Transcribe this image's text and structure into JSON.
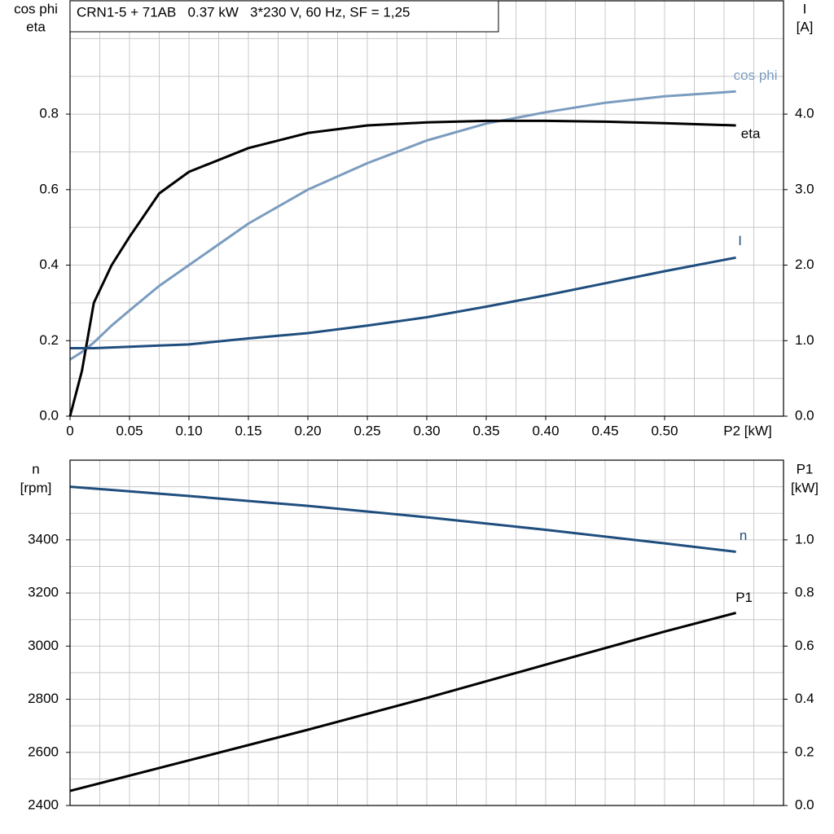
{
  "chart_data": [
    {
      "type": "line",
      "title": "CRN1-5 + 71AB   0.37 kW   3*230 V, 60 Hz, SF = 1,25",
      "ylabel": [
        "cos phi",
        "eta"
      ],
      "y2label": [
        "I",
        "[A]"
      ],
      "xlabel": "P2 [kW]",
      "x": [
        0,
        0.01,
        0.02,
        0.035,
        0.05,
        0.075,
        0.1,
        0.15,
        0.2,
        0.25,
        0.3,
        0.35,
        0.4,
        0.45,
        0.5,
        0.56
      ],
      "xlim": [
        0,
        0.6
      ],
      "xticks": [
        0,
        0.05,
        {
          "value": 0.1,
          "label": "0.10"
        },
        0.15,
        {
          "value": 0.2,
          "label": "0.20"
        },
        0.25,
        {
          "value": 0.3,
          "label": "0.30"
        },
        0.35,
        {
          "value": 0.4,
          "label": "0.40"
        },
        0.45,
        {
          "value": 0.5,
          "label": "0.50"
        }
      ],
      "xgrid": [
        0.025,
        0.05,
        0.075,
        0.1,
        0.125,
        0.15,
        0.175,
        0.2,
        0.225,
        0.25,
        0.275,
        0.3,
        0.325,
        0.35,
        0.375,
        0.4,
        0.425,
        0.45,
        0.475,
        0.5,
        0.525,
        0.55,
        0.575
      ],
      "ylim": [
        0,
        1.1
      ],
      "yticks": [
        {
          "value": 0,
          "label": "0.0"
        },
        0.2,
        0.4,
        0.6,
        0.8
      ],
      "ygrid": [
        0.1,
        0.2,
        0.3,
        0.4,
        0.5,
        0.6,
        0.7,
        0.8,
        0.9,
        1.0
      ],
      "y2lim": [
        0,
        5.5
      ],
      "y2ticks": [
        {
          "value": 0,
          "label": "0.0"
        },
        {
          "value": 1,
          "label": "1.0"
        },
        {
          "value": 2,
          "label": "2.0"
        },
        {
          "value": 3,
          "label": "3.0"
        },
        {
          "value": 4,
          "label": "4.0"
        }
      ],
      "series": [
        {
          "name": "cos phi",
          "color": "#7b9cbf",
          "values": [
            0.15,
            0.17,
            0.195,
            0.24,
            0.28,
            0.345,
            0.4,
            0.51,
            0.6,
            0.67,
            0.73,
            0.775,
            0.805,
            0.83,
            0.847,
            0.86
          ]
        },
        {
          "name": "eta",
          "color": "#000000",
          "values": [
            0,
            0.12,
            0.3,
            0.4,
            0.475,
            0.59,
            0.647,
            0.71,
            0.75,
            0.77,
            0.778,
            0.782,
            0.782,
            0.78,
            0.776,
            0.77
          ]
        },
        {
          "name": "I",
          "color": "#1f4e7e",
          "axis": "y2",
          "values": [
            0.9,
            0.9,
            0.9,
            0.91,
            0.92,
            0.935,
            0.95,
            1.03,
            1.1,
            1.2,
            1.31,
            1.45,
            1.6,
            1.76,
            1.92,
            2.1
          ]
        }
      ]
    },
    {
      "type": "line",
      "ylabel": [
        "n",
        "[rpm]"
      ],
      "y2label": [
        "P1",
        "[kW]"
      ],
      "x": [
        0,
        0.1,
        0.2,
        0.3,
        0.4,
        0.5,
        0.56
      ],
      "xlim": [
        0,
        0.6
      ],
      "xgrid": [
        0.025,
        0.05,
        0.075,
        0.1,
        0.125,
        0.15,
        0.175,
        0.2,
        0.225,
        0.25,
        0.275,
        0.3,
        0.325,
        0.35,
        0.375,
        0.4,
        0.425,
        0.45,
        0.475,
        0.5,
        0.525,
        0.55,
        0.575
      ],
      "ylim": [
        2400,
        3700
      ],
      "yticks": [
        2400,
        2600,
        2800,
        3000,
        3200,
        3400
      ],
      "ygrid": [
        2500,
        2600,
        2700,
        2800,
        2900,
        3000,
        3100,
        3200,
        3300,
        3400,
        3500,
        3600
      ],
      "y2lim": [
        0,
        1.3
      ],
      "y2ticks": [
        {
          "value": 0,
          "label": "0.0"
        },
        0.2,
        0.4,
        0.6,
        0.8,
        {
          "value": 1,
          "label": "1.0"
        }
      ],
      "series": [
        {
          "name": "n",
          "color": "#1f4e7e",
          "values": [
            3600,
            3565,
            3528,
            3485,
            3438,
            3387,
            3355
          ]
        },
        {
          "name": "P1",
          "color": "#000000",
          "axis": "y2",
          "values": [
            0.055,
            0.17,
            0.285,
            0.405,
            0.53,
            0.655,
            0.725
          ]
        }
      ]
    }
  ]
}
